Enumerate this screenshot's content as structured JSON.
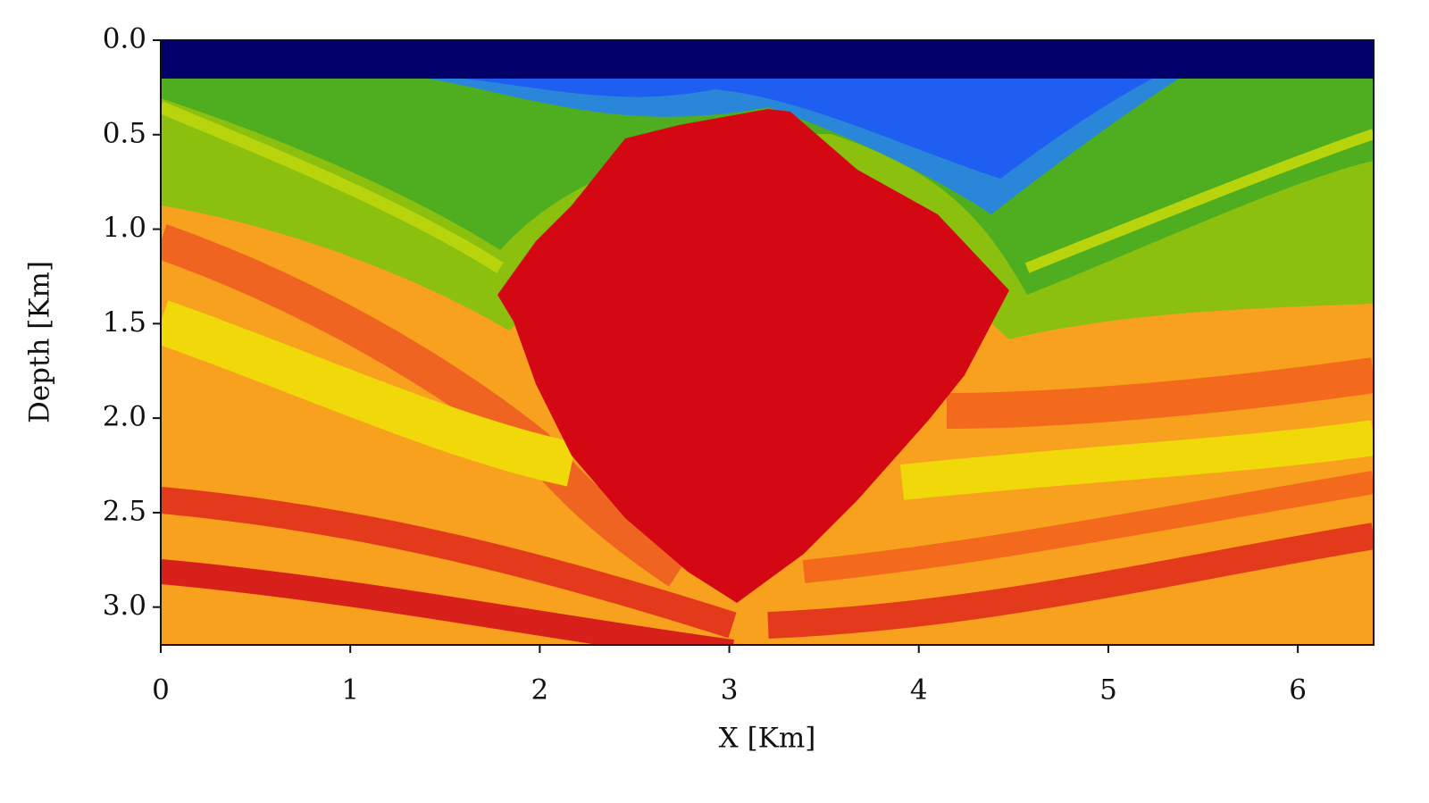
{
  "chart_data": {
    "type": "image",
    "xlabel": "X [Km]",
    "ylabel": "Depth [Km]",
    "xlim": [
      0,
      6.4
    ],
    "ylim": [
      3.2,
      0
    ],
    "xticks": [
      0,
      1,
      2,
      3,
      4,
      5,
      6
    ],
    "yticks": [
      {
        "value": 0,
        "label": "0.0"
      },
      0.5,
      {
        "value": 1,
        "label": "1.0"
      },
      1.5,
      {
        "value": 2,
        "label": "2.0"
      },
      2.5,
      {
        "value": 3,
        "label": "3.0"
      }
    ]
  }
}
